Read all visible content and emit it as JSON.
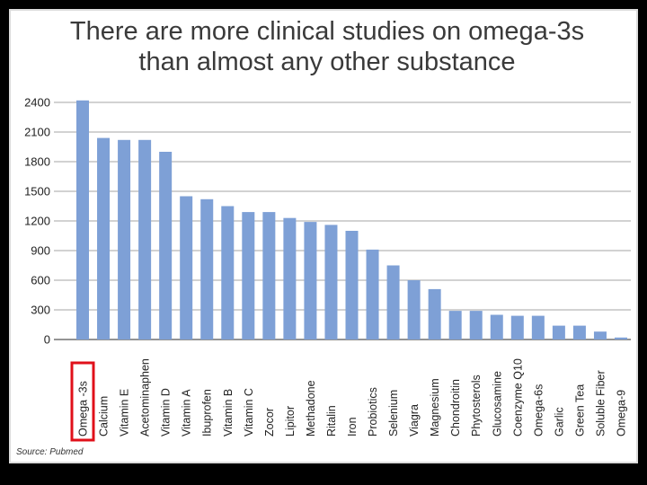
{
  "chart_data": {
    "type": "bar",
    "title": [
      "There are more clinical studies on omega-3s",
      "than almost any other substance"
    ],
    "source": "Source: Pubmed",
    "ylim": [
      0,
      2500
    ],
    "yticks": [
      0,
      300,
      600,
      900,
      1200,
      1500,
      1800,
      2100,
      2400
    ],
    "ytick_labels": [
      "0",
      "300",
      "600",
      "900",
      "1200",
      "1500",
      "1800",
      "2100",
      "2400"
    ],
    "grid": true,
    "categories": [
      "Omega -3s",
      "Calcium",
      "Vitamin E",
      "Acetominaphen",
      "Vitamin D",
      "Vitamin A",
      "Ibuprofen",
      "Vitamin B",
      "Vitamin C",
      "Zocor",
      "Lipitor",
      "Methadone",
      "Ritalin",
      "Iron",
      "Probiotics",
      "Selenium",
      "Viagra",
      "Magnesium",
      "Chondroitin",
      "Phytosterols",
      "Glucosamine",
      "Coenzyme Q10",
      "Omega-6s",
      "Garlic",
      "Green Tea",
      "Soluble Fiber",
      "Omega-9"
    ],
    "values": [
      2420,
      2040,
      2020,
      2020,
      1900,
      1450,
      1420,
      1350,
      1290,
      1290,
      1230,
      1190,
      1160,
      1100,
      910,
      750,
      600,
      510,
      290,
      290,
      250,
      240,
      240,
      140,
      140,
      80,
      20
    ],
    "highlight": "Omega -3s",
    "bar_color": "#7ea0d6",
    "highlight_box_color": "#e0101a"
  }
}
